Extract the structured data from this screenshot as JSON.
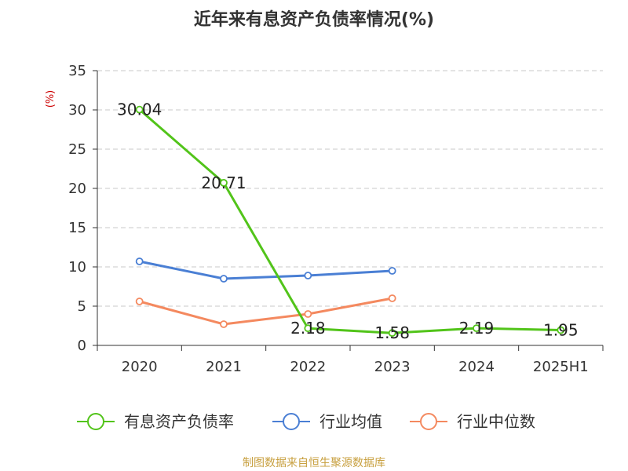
{
  "chart_data": {
    "type": "line",
    "title": "近年来有息资产负债率情况(%)",
    "unit": "(%)",
    "categories": [
      "2020",
      "2021",
      "2022",
      "2023",
      "2024",
      "2025H1"
    ],
    "ylim": [
      0,
      35
    ],
    "yticks": [
      "0",
      "5",
      "10",
      "15",
      "20",
      "25",
      "30",
      "35"
    ],
    "grid": true,
    "legend_position": "bottom",
    "series": [
      {
        "name": "有息资产负债率",
        "color": "#52c41a",
        "values": [
          30.04,
          20.71,
          2.18,
          1.58,
          2.19,
          1.95
        ],
        "labels": [
          "30.04",
          "20.71",
          "2.18",
          "1.58",
          "2.19",
          "1.95"
        ]
      },
      {
        "name": "行业均值",
        "color": "#4a7fd4",
        "values": [
          10.7,
          8.5,
          8.9,
          9.5,
          null,
          null
        ]
      },
      {
        "name": "行业中位数",
        "color": "#f4895f",
        "values": [
          5.6,
          2.7,
          4.0,
          6.0,
          null,
          null
        ]
      }
    ],
    "source": "制图数据来自恒生聚源数据库"
  }
}
